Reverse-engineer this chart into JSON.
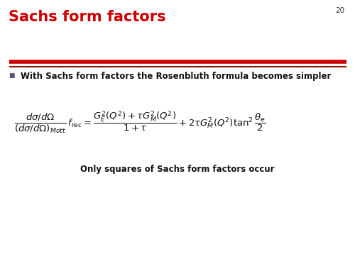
{
  "title": "Sachs form factors",
  "title_color": "#CC0000",
  "title_fontsize": 15,
  "page_number": "20",
  "bg_color": "#FFFFFF",
  "bullet_text": "With Sachs form factors the Rosenbluth formula becomes simpler",
  "bullet_fontsize": 8.5,
  "equation_fontsize": 9.5,
  "caption_text": "Only squares of Sachs form factors occur",
  "caption_fontsize": 8.5,
  "separator_color_top": "#CC0000",
  "separator_color_bottom": "#8B1A00",
  "bullet_color": "#111111",
  "bullet_square_color": "#555577"
}
